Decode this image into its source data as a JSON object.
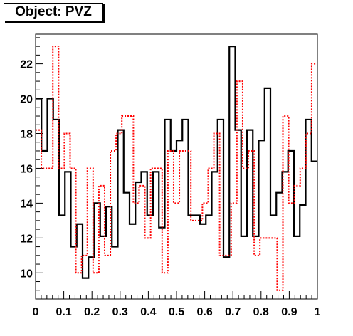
{
  "chart_data": {
    "type": "line",
    "title": "Object: PVZ",
    "xlabel": "",
    "ylabel": "",
    "xlim": [
      0,
      1
    ],
    "ylim": [
      8.5,
      23.7
    ],
    "x_ticks": [
      "0",
      "0.1",
      "0.2",
      "0.3",
      "0.4",
      "0.5",
      "0.6",
      "0.7",
      "0.8",
      "0.9",
      "1"
    ],
    "y_ticks": [
      "10",
      "12",
      "14",
      "16",
      "18",
      "20",
      "22"
    ],
    "x_tick_values": [
      0,
      0.1,
      0.2,
      0.3,
      0.4,
      0.5,
      0.6,
      0.7,
      0.8,
      0.9,
      1.0
    ],
    "y_tick_values": [
      10,
      12,
      14,
      16,
      18,
      20,
      22
    ],
    "bin_edges": [
      0,
      0.02,
      0.04,
      0.06,
      0.08,
      0.1,
      0.12,
      0.14,
      0.16,
      0.18,
      0.2,
      0.22,
      0.24,
      0.26,
      0.28,
      0.3,
      0.32,
      0.34,
      0.36,
      0.38,
      0.4,
      0.42,
      0.44,
      0.46,
      0.48,
      0.5,
      0.52,
      0.54,
      0.56,
      0.58,
      0.6,
      0.62,
      0.64,
      0.66,
      0.68,
      0.7,
      0.72,
      0.74,
      0.76,
      0.78,
      0.8,
      0.82,
      0.84,
      0.86,
      0.88,
      0.9,
      0.92,
      0.94,
      0.96,
      0.98,
      1.0
    ],
    "grid": false,
    "legend": "none",
    "series": [
      {
        "color": "#000000",
        "style": "solid",
        "values": [
          20.0,
          17.0,
          20.0,
          18.8,
          13.3,
          15.8,
          11.5,
          12.8,
          9.7,
          10.9,
          14.0,
          12.1,
          13.8,
          11.5,
          18.2,
          14.6,
          12.8,
          15.2,
          15.8,
          13.3,
          15.8,
          12.6,
          18.8,
          17.0,
          17.6,
          18.8,
          13.3,
          13.3,
          12.8,
          13.3,
          15.8,
          18.8,
          10.9,
          23.0,
          18.2,
          12.1,
          18.2,
          12.1,
          17.6,
          20.6,
          13.3,
          14.6,
          15.8,
          17.0,
          12.1,
          13.9,
          18.8,
          16.4
        ]
      },
      {
        "color": "#ff0000",
        "style": "dotted",
        "values": [
          18.2,
          16.0,
          16.0,
          23.0,
          16.0,
          18.0,
          16.0,
          10.0,
          11.0,
          16.0,
          10.0,
          15.0,
          11.0,
          17.0,
          18.0,
          19.0,
          19.0,
          14.0,
          15.0,
          12.0,
          16.0,
          16.0,
          10.0,
          17.0,
          14.0,
          17.0,
          17.0,
          13.0,
          13.0,
          14.0,
          16.0,
          18.0,
          11.0,
          11.0,
          14.0,
          21.0,
          16.0,
          17.0,
          11.0,
          12.0,
          12.0,
          12.0,
          9.0,
          19.0,
          14.0,
          15.0,
          16.0,
          18.0,
          22.0
        ]
      }
    ]
  }
}
